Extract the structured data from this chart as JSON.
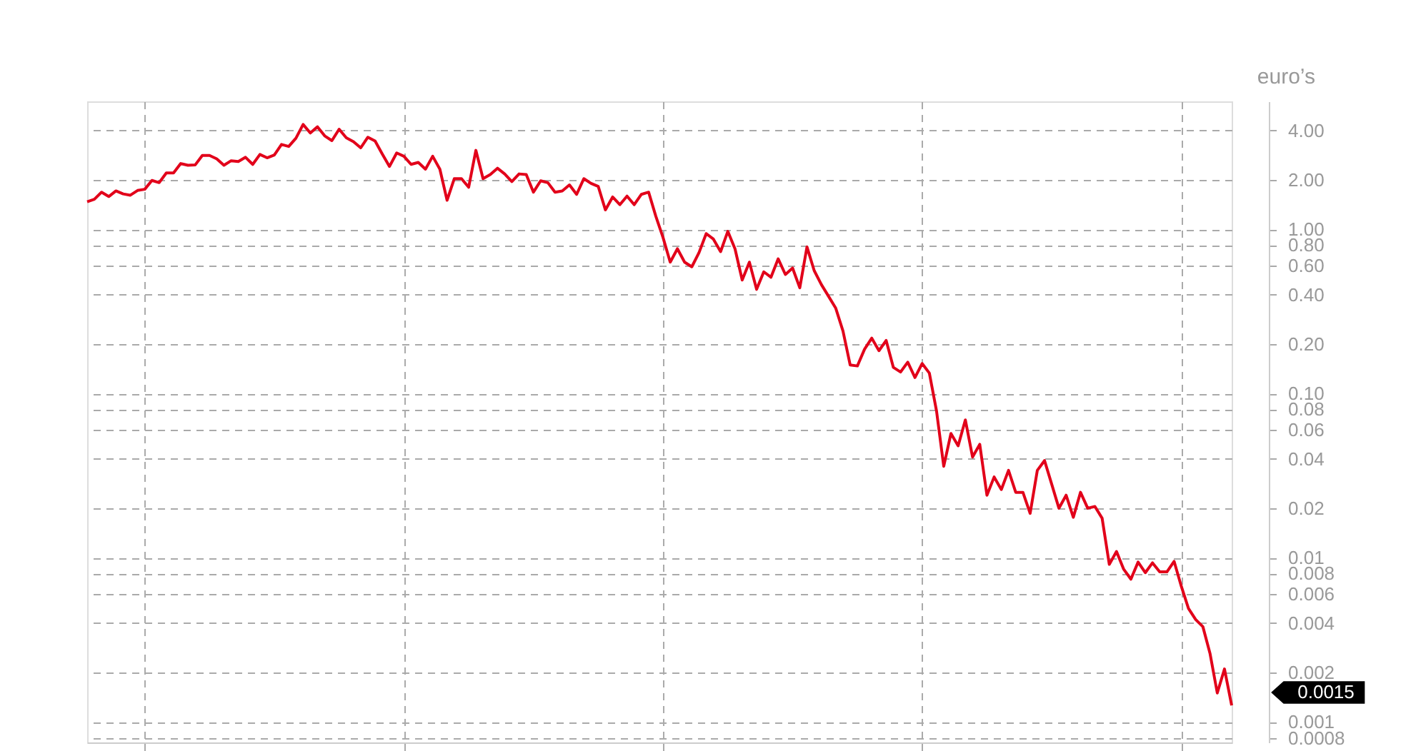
{
  "chart_data": {
    "type": "line",
    "ylabel": "euro’s",
    "log": "y",
    "grid": true,
    "legend": false,
    "tick_labels": "y",
    "marker": "none",
    "line_style": "solid",
    "categories": [
      null,
      null,
      null,
      null,
      null,
      null,
      null,
      null,
      null,
      null,
      null,
      null,
      null,
      null,
      null,
      null,
      null,
      null,
      null,
      null,
      null,
      null,
      null,
      null,
      null,
      null,
      null,
      null,
      null,
      null,
      null,
      null,
      null,
      null,
      null,
      null,
      null,
      null,
      null,
      null,
      null,
      null,
      null,
      null,
      null,
      null,
      null,
      null,
      null,
      null,
      null,
      null,
      null,
      null,
      null,
      null,
      null,
      null,
      null,
      null,
      null,
      null,
      null,
      null,
      null,
      null,
      null,
      null,
      null,
      null,
      null,
      null,
      null,
      null,
      null,
      null,
      null,
      null,
      null,
      null,
      null,
      null,
      null,
      null,
      null,
      null,
      null,
      null,
      null,
      null,
      null,
      null,
      null,
      null,
      null,
      null,
      null,
      null,
      null,
      null,
      null,
      null,
      null,
      null,
      null,
      null,
      null,
      null,
      null,
      null,
      null,
      null,
      null,
      null,
      null,
      null,
      null,
      null,
      null,
      null,
      null,
      null,
      null,
      null,
      null,
      null,
      null,
      null,
      null,
      null,
      null,
      null,
      null,
      null,
      null,
      null,
      null,
      null,
      null,
      null,
      null,
      null,
      null,
      null,
      null,
      null,
      null,
      null,
      null,
      null,
      null,
      null,
      null,
      null,
      null,
      null,
      null,
      null,
      null,
      null
    ],
    "ylim": [
      0.00075,
      6
    ],
    "yticks": [
      {
        "value": 4,
        "label": "4.00"
      },
      {
        "value": 2,
        "label": "2.00"
      },
      {
        "value": 1,
        "label": "1.00"
      },
      {
        "value": 0.8,
        "label": "0.80"
      },
      {
        "value": 0.6,
        "label": "0.60"
      },
      {
        "value": 0.4,
        "label": "0.40"
      },
      {
        "value": 0.2,
        "label": "0.20"
      },
      {
        "value": 0.1,
        "label": "0.10"
      },
      {
        "value": 0.08,
        "label": "0.08"
      },
      {
        "value": 0.06,
        "label": "0.06"
      },
      {
        "value": 0.04,
        "label": "0.04"
      },
      {
        "value": 0.02,
        "label": "0.02"
      },
      {
        "value": 0.01,
        "label": "0.01"
      },
      {
        "value": 0.008,
        "label": "0.008"
      },
      {
        "value": 0.006,
        "label": "0.006"
      },
      {
        "value": 0.004,
        "label": "0.004"
      },
      {
        "value": 0.002,
        "label": "0.002"
      },
      {
        "value": 0.001,
        "label": "0.001"
      },
      {
        "value": 0.0008,
        "label": "0.0008"
      }
    ],
    "annotations": [
      "0.0015"
    ],
    "series": [
      {
        "color": "#e2001a",
        "values": [
          1.47,
          1.52,
          1.68,
          1.58,
          1.71,
          1.64,
          1.61,
          1.72,
          1.75,
          1.98,
          1.92,
          2.2,
          2.2,
          2.51,
          2.45,
          2.46,
          2.81,
          2.81,
          2.68,
          2.45,
          2.61,
          2.58,
          2.74,
          2.48,
          2.85,
          2.72,
          2.83,
          3.28,
          3.19,
          3.58,
          4.34,
          3.85,
          4.2,
          3.7,
          3.46,
          4.06,
          3.6,
          3.41,
          3.13,
          3.63,
          3.44,
          2.87,
          2.41,
          2.91,
          2.78,
          2.48,
          2.55,
          2.32,
          2.78,
          2.32,
          1.5,
          2.03,
          2.03,
          1.8,
          3.02,
          2.03,
          2.15,
          2.35,
          2.17,
          1.95,
          2.17,
          2.15,
          1.68,
          1.97,
          1.92,
          1.68,
          1.71,
          1.86,
          1.63,
          2.03,
          1.9,
          1.82,
          1.31,
          1.57,
          1.41,
          1.59,
          1.41,
          1.63,
          1.68,
          1.2,
          0.89,
          0.63,
          0.76,
          0.63,
          0.59,
          0.72,
          0.94,
          0.87,
          0.73,
          0.97,
          0.76,
          0.49,
          0.63,
          0.43,
          0.55,
          0.51,
          0.66,
          0.53,
          0.58,
          0.44,
          0.78,
          0.56,
          0.46,
          0.39,
          0.33,
          0.24,
          0.149,
          0.147,
          0.186,
          0.217,
          0.182,
          0.21,
          0.144,
          0.135,
          0.155,
          0.125,
          0.152,
          0.133,
          0.078,
          0.036,
          0.057,
          0.048,
          0.069,
          0.041,
          0.049,
          0.024,
          0.031,
          0.026,
          0.034,
          0.025,
          0.025,
          0.0186,
          0.034,
          0.039,
          0.028,
          0.02,
          0.024,
          0.0176,
          0.025,
          0.02,
          0.0205,
          0.0174,
          0.0091,
          0.0109,
          0.0085,
          0.0074,
          0.0094,
          0.0081,
          0.0093,
          0.0082,
          0.0082,
          0.0095,
          0.0067,
          0.0049,
          0.0042,
          0.0038,
          0.0026,
          0.0015,
          0.0021,
          0.00126
        ]
      }
    ]
  }
}
